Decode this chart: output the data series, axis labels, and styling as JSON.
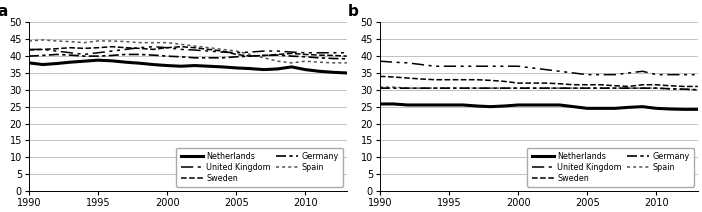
{
  "years": [
    1990,
    1991,
    1992,
    1993,
    1994,
    1995,
    1996,
    1997,
    1998,
    1999,
    2000,
    2001,
    2002,
    2003,
    2004,
    2005,
    2006,
    2007,
    2008,
    2009,
    2010,
    2011,
    2012,
    2013
  ],
  "panel_a": {
    "Netherlands": [
      38.0,
      37.5,
      37.8,
      38.2,
      38.5,
      38.8,
      38.6,
      38.2,
      37.9,
      37.5,
      37.2,
      37.0,
      37.2,
      37.0,
      36.8,
      36.5,
      36.3,
      36.0,
      36.2,
      36.8,
      36.0,
      35.5,
      35.2,
      35.0
    ],
    "Sweden": [
      41.8,
      42.0,
      42.2,
      42.5,
      42.3,
      42.5,
      42.8,
      42.5,
      42.3,
      42.0,
      42.5,
      42.8,
      42.5,
      42.0,
      41.5,
      40.5,
      40.0,
      40.2,
      40.5,
      40.8,
      40.5,
      40.3,
      40.2,
      40.0
    ],
    "Spain": [
      44.5,
      44.8,
      44.5,
      44.3,
      44.0,
      44.5,
      44.5,
      44.3,
      44.0,
      44.0,
      44.0,
      43.5,
      43.0,
      42.5,
      42.0,
      41.5,
      40.5,
      39.5,
      38.5,
      38.0,
      38.5,
      38.2,
      38.0,
      38.0
    ],
    "United Kingdom": [
      42.0,
      42.0,
      41.5,
      41.0,
      40.5,
      41.0,
      41.5,
      42.0,
      42.5,
      42.8,
      42.5,
      42.0,
      41.8,
      41.5,
      41.2,
      41.0,
      41.2,
      41.5,
      41.5,
      41.2,
      41.0,
      41.0,
      41.0,
      41.0
    ],
    "Germany": [
      40.0,
      40.2,
      40.5,
      40.3,
      40.0,
      40.0,
      40.2,
      40.5,
      40.5,
      40.3,
      40.0,
      39.8,
      39.5,
      39.5,
      39.5,
      39.8,
      40.0,
      40.2,
      40.3,
      40.0,
      39.8,
      39.5,
      39.3,
      39.2
    ]
  },
  "panel_b": {
    "Netherlands": [
      25.8,
      25.8,
      25.5,
      25.5,
      25.5,
      25.5,
      25.5,
      25.2,
      25.0,
      25.2,
      25.5,
      25.5,
      25.5,
      25.5,
      25.0,
      24.5,
      24.5,
      24.5,
      24.8,
      25.0,
      24.5,
      24.3,
      24.2,
      24.2
    ],
    "Sweden": [
      34.0,
      33.8,
      33.5,
      33.2,
      33.0,
      33.0,
      33.0,
      33.0,
      32.8,
      32.5,
      32.0,
      32.0,
      32.0,
      31.8,
      31.5,
      31.5,
      31.5,
      31.2,
      31.0,
      31.5,
      31.5,
      31.2,
      31.0,
      31.0
    ],
    "Spain": [
      30.8,
      30.8,
      30.5,
      30.5,
      30.5,
      30.5,
      30.5,
      30.5,
      30.5,
      30.5,
      30.5,
      30.5,
      30.5,
      30.5,
      30.5,
      30.5,
      30.5,
      30.5,
      30.5,
      30.5,
      30.5,
      30.3,
      30.2,
      30.0
    ],
    "United Kingdom": [
      38.5,
      38.2,
      38.0,
      37.5,
      37.0,
      37.0,
      37.0,
      37.0,
      37.0,
      37.0,
      37.0,
      36.5,
      36.0,
      35.5,
      35.0,
      34.5,
      34.5,
      34.5,
      35.0,
      35.5,
      34.5,
      34.5,
      34.5,
      34.5
    ],
    "Germany": [
      30.5,
      30.5,
      30.5,
      30.5,
      30.5,
      30.5,
      30.5,
      30.5,
      30.5,
      30.5,
      30.5,
      30.5,
      30.5,
      30.5,
      30.5,
      30.5,
      30.5,
      30.5,
      30.5,
      30.5,
      30.5,
      30.3,
      30.2,
      30.0
    ]
  },
  "ylim": [
    0,
    50
  ],
  "yticks": [
    0,
    5,
    10,
    15,
    20,
    25,
    30,
    35,
    40,
    45,
    50
  ],
  "xlim": [
    1990,
    2013
  ],
  "xticks": [
    1990,
    1995,
    2000,
    2005,
    2010
  ],
  "panel_labels": [
    "a",
    "b"
  ],
  "background_color": "#ffffff",
  "country_order": [
    "Netherlands",
    "Sweden",
    "Spain",
    "United Kingdom",
    "Germany"
  ]
}
